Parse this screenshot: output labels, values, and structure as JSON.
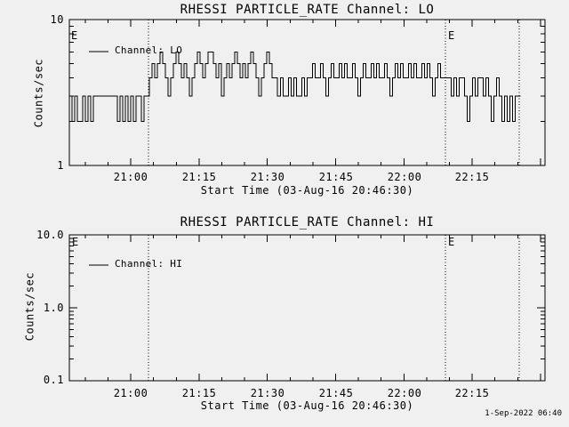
{
  "page": {
    "background": "#f0f0f0",
    "foreground": "#000000",
    "timestamp": "1-Sep-2022 06:40"
  },
  "chart_data": [
    {
      "type": "line",
      "title": "RHESSI PARTICLE_RATE Channel: LO",
      "xlabel": "Start Time (03-Aug-16 20:46:30)",
      "ylabel": "Counts/sec",
      "yscale": "log",
      "ylim": [
        1,
        10
      ],
      "xlim_minutes": [
        0,
        104.5
      ],
      "grid": false,
      "legend": {
        "label": "Channel: LO",
        "position": "upper-left"
      },
      "yticks": [
        {
          "value": 10,
          "label": "10"
        },
        {
          "value": 1,
          "label": "1"
        }
      ],
      "xticks": [
        {
          "min": 13.5,
          "label": "21:00"
        },
        {
          "min": 28.5,
          "label": "21:15"
        },
        {
          "min": 43.5,
          "label": "21:30"
        },
        {
          "min": 58.5,
          "label": "21:45"
        },
        {
          "min": 73.5,
          "label": "22:00"
        },
        {
          "min": 88.5,
          "label": "22:15"
        }
      ],
      "minor_xtick_min": 5,
      "eclipse_markers": [
        {
          "min": 0.6,
          "label": "E"
        },
        {
          "min": 83.2,
          "label": "E"
        }
      ],
      "vlines_min": [
        17.4,
        82.6,
        98.8
      ],
      "series": {
        "name": "Channel: LO",
        "start_min": 0,
        "step_min": 0.5866,
        "units": "counts/sec",
        "counts": [
          3,
          2,
          3,
          2,
          2,
          3,
          2,
          3,
          2,
          3,
          3,
          3,
          3,
          3,
          3,
          3,
          3,
          3,
          2,
          3,
          2,
          3,
          2,
          3,
          2,
          3,
          3,
          2,
          3,
          3,
          4,
          5,
          4,
          5,
          6,
          5,
          4,
          3,
          4,
          5,
          6,
          5,
          4,
          5,
          4,
          3,
          4,
          5,
          6,
          5,
          4,
          5,
          6,
          6,
          5,
          4,
          5,
          3,
          4,
          5,
          4,
          5,
          6,
          5,
          4,
          5,
          4,
          5,
          6,
          5,
          4,
          3,
          4,
          5,
          6,
          5,
          4,
          4,
          3,
          4,
          3,
          3,
          4,
          3,
          4,
          3,
          3,
          4,
          3,
          4,
          4,
          5,
          4,
          4,
          5,
          4,
          3,
          4,
          5,
          4,
          4,
          5,
          4,
          5,
          4,
          4,
          5,
          4,
          3,
          4,
          5,
          4,
          4,
          5,
          4,
          5,
          4,
          4,
          5,
          4,
          3,
          4,
          5,
          4,
          5,
          4,
          4,
          5,
          4,
          5,
          4,
          4,
          5,
          4,
          5,
          4,
          3,
          4,
          5,
          4,
          4,
          4,
          4,
          3,
          4,
          3,
          4,
          4,
          3,
          2,
          3,
          4,
          3,
          4,
          4,
          3,
          4,
          3,
          2,
          3,
          4,
          3,
          2,
          3,
          2,
          3,
          2,
          3,
          3
        ]
      }
    },
    {
      "type": "line",
      "title": "RHESSI PARTICLE_RATE Channel: HI",
      "xlabel": "Start Time (03-Aug-16 20:46:30)",
      "ylabel": "Counts/sec",
      "yscale": "log",
      "ylim": [
        0.1,
        10
      ],
      "xlim_minutes": [
        0,
        104.5
      ],
      "grid": false,
      "legend": {
        "label": "Channel: HI",
        "position": "upper-left"
      },
      "yticks": [
        {
          "value": 10,
          "label": "10.0"
        },
        {
          "value": 1,
          "label": "1.0"
        },
        {
          "value": 0.1,
          "label": "0.1"
        }
      ],
      "xticks": [
        {
          "min": 13.5,
          "label": "21:00"
        },
        {
          "min": 28.5,
          "label": "21:15"
        },
        {
          "min": 43.5,
          "label": "21:30"
        },
        {
          "min": 58.5,
          "label": "21:45"
        },
        {
          "min": 73.5,
          "label": "22:00"
        },
        {
          "min": 88.5,
          "label": "22:15"
        }
      ],
      "minor_xtick_min": 5,
      "eclipse_markers": [
        {
          "min": 0.6,
          "label": "E"
        },
        {
          "min": 83.2,
          "label": "E"
        }
      ],
      "vlines_min": [
        17.4,
        82.6,
        98.8
      ],
      "series": {
        "name": "Channel: HI",
        "start_min": 0,
        "step_min": 0.5866,
        "units": "counts/sec",
        "counts": []
      }
    }
  ]
}
